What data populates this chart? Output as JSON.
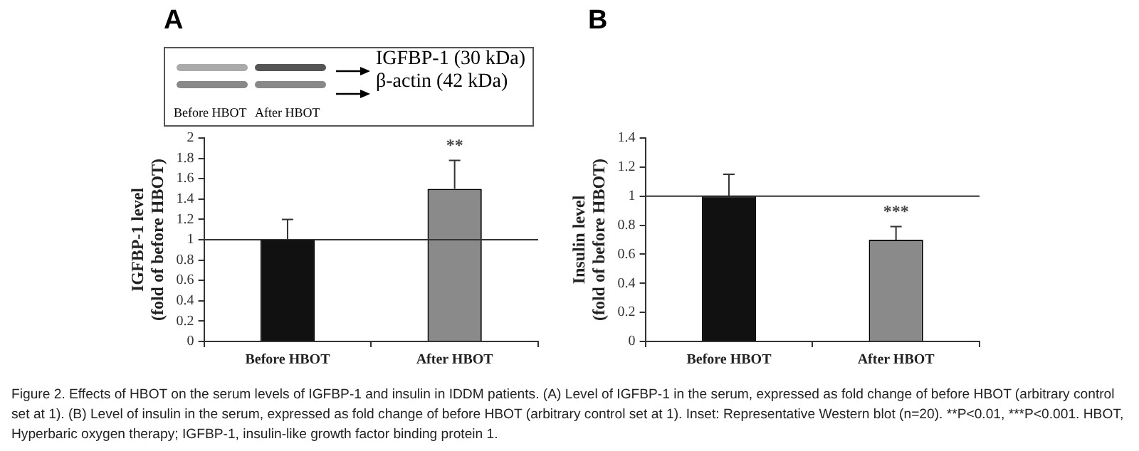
{
  "chart_data": [
    {
      "type": "bar",
      "title": "A",
      "ylabel": "IGFBP-1 level\n(fold of before HBOT)",
      "categories": [
        "Before HBOT",
        "After HBOT"
      ],
      "values": [
        1,
        1.5
      ],
      "errors": [
        0.2,
        0.28
      ],
      "colors": [
        "#111111",
        "#8a8a8a"
      ],
      "ylim": [
        0,
        2
      ],
      "yticks": [
        0,
        0.2,
        0.4,
        0.6,
        0.8,
        1,
        1.2,
        1.4,
        1.6,
        1.8,
        2
      ],
      "grid": false,
      "legend": false,
      "ref_lines": [
        {
          "axis": "y",
          "value": 1,
          "color": "#333333"
        }
      ],
      "annotations": [
        "IGFBP-1 (30 kDa)",
        "β-actin (42 kDa)",
        "Before HBOT",
        "After HBOT",
        {
          "text": "**",
          "x": "After HBOT",
          "y": 1.78
        }
      ]
    },
    {
      "type": "bar",
      "title": "B",
      "ylabel": "Insulin level\n(fold of before HBOT)",
      "categories": [
        "Before HBOT",
        "After HBOT"
      ],
      "values": [
        1,
        0.7
      ],
      "errors": [
        0.15,
        0.09
      ],
      "colors": [
        "#111111",
        "#8a8a8a"
      ],
      "ylim": [
        0,
        1.4
      ],
      "yticks": [
        0,
        0.2,
        0.4,
        0.6,
        0.8,
        1,
        1.2,
        1.4
      ],
      "grid": false,
      "legend": false,
      "ref_lines": [
        {
          "axis": "y",
          "value": 1,
          "color": "#333333"
        }
      ],
      "annotations": [
        {
          "text": "***",
          "x": "After HBOT",
          "y": 0.79
        },
        "Figure 2. Effects of HBOT on the serum levels of IGFBP-1 and insulin in IDDM patients. (A) Level of IGFBP-1 in the serum, expressed as fold change of before HBOT (arbitrary control set at 1). (B) Level of insulin in the serum, expressed as fold change of before HBOT (arbitrary control set at 1). Inset: Representative Western blot (n=20). **P<0.01, ***P<0.001. HBOT, Hyperbaric oxygen therapy; IGFBP-1, insulin-like growth factor binding protein 1."
      ]
    }
  ]
}
